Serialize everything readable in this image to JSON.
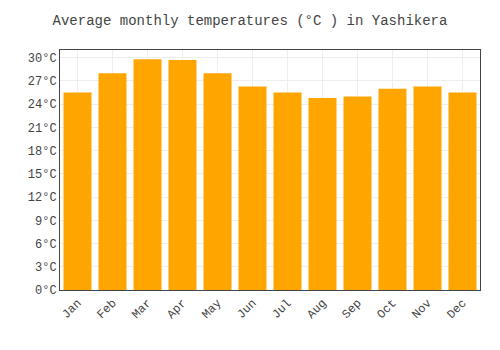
{
  "chart_data": {
    "type": "bar",
    "title": "Average monthly temperatures (°C ) in Yashikera",
    "categories": [
      "Jan",
      "Feb",
      "Mar",
      "Apr",
      "May",
      "Jun",
      "Jul",
      "Aug",
      "Sep",
      "Oct",
      "Nov",
      "Dec"
    ],
    "values": [
      25.5,
      28.0,
      29.8,
      29.7,
      28.0,
      26.3,
      25.5,
      24.8,
      25.0,
      26.0,
      26.3,
      25.5
    ],
    "color": "#FFA500",
    "ylim": [
      0,
      31
    ],
    "yticks": [
      {
        "value": 0,
        "label": "0°C"
      },
      {
        "value": 3,
        "label": "3°C"
      },
      {
        "value": 6,
        "label": "6°C"
      },
      {
        "value": 9,
        "label": "9°C"
      },
      {
        "value": 12,
        "label": "12°C"
      },
      {
        "value": 15,
        "label": "15°C"
      },
      {
        "value": 18,
        "label": "18°C"
      },
      {
        "value": 21,
        "label": "21°C"
      },
      {
        "value": 24,
        "label": "24°C"
      },
      {
        "value": 27,
        "label": "27°C"
      },
      {
        "value": 30,
        "label": "30°C"
      }
    ],
    "grid": true
  }
}
